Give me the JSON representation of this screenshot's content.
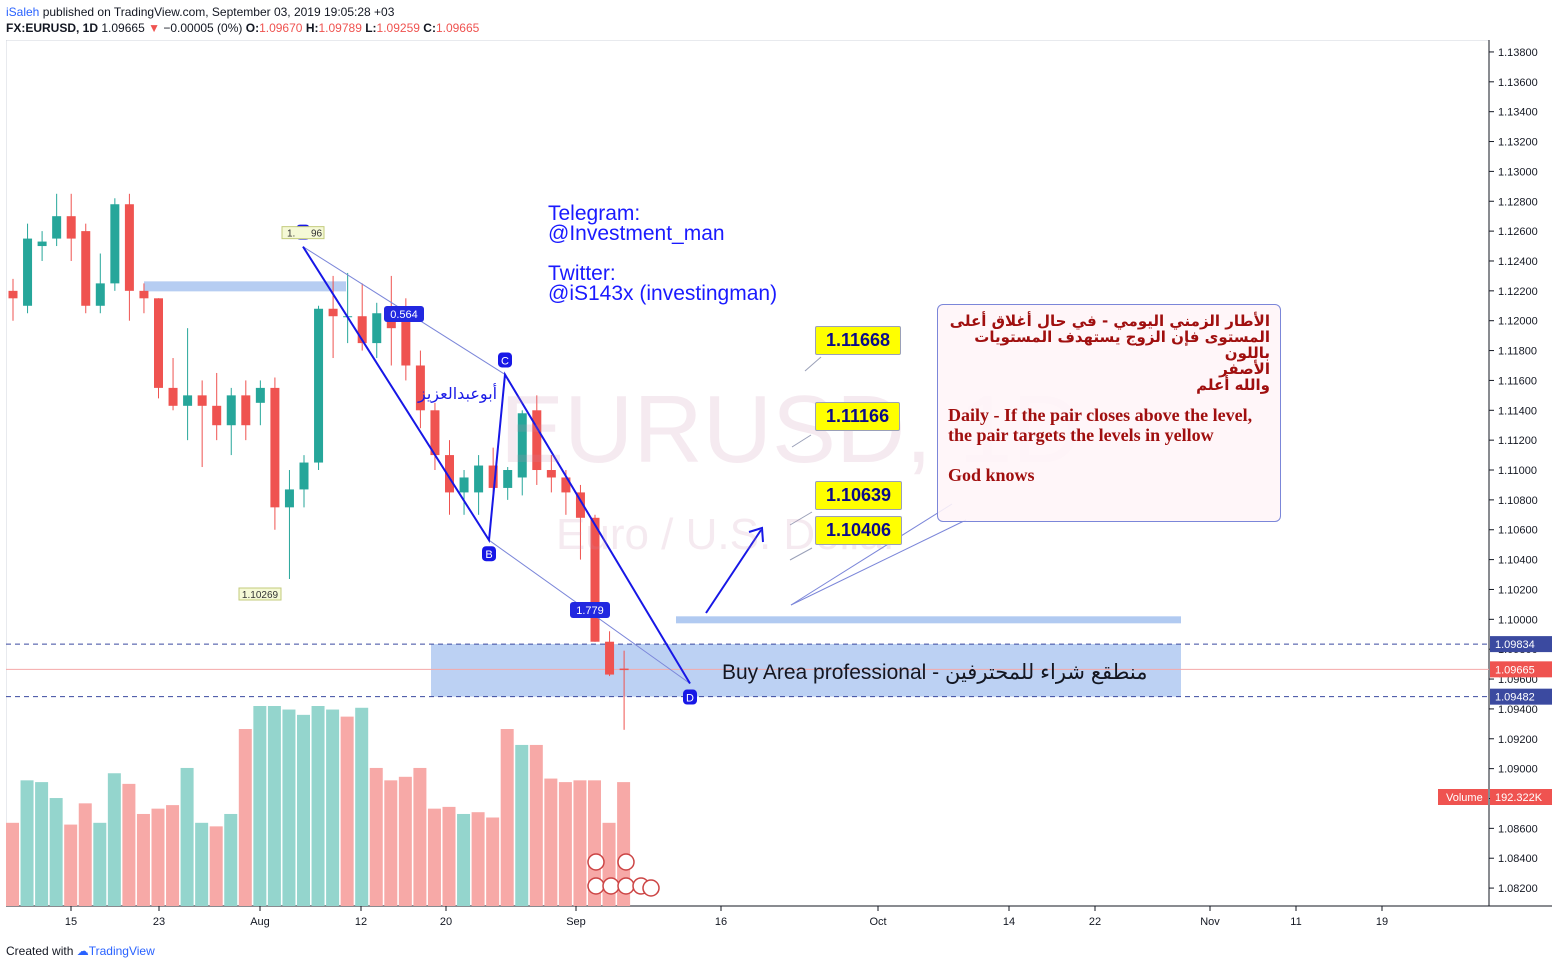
{
  "header": {
    "user": "iSaleh",
    "published_text": " published on TradingView.com, September 03, 2019 19:05:28 +03",
    "symbol": "FX:EURUSD, 1D",
    "last": "1.09665",
    "change": "−0.00005 (0%)",
    "o_label": "O:",
    "o_value": "1.09670",
    "h_label": "H:",
    "h_value": "1.09789",
    "l_label": "L:",
    "l_value": "1.09259",
    "c_label": "C:",
    "c_value": "1.09665"
  },
  "watermark": {
    "symbol": "EURUSD, 1D",
    "desc": "Euro / U.S. Dollar"
  },
  "social": {
    "line1": "Telegram:",
    "line2": "@Investment_man",
    "line3": "Twitter:",
    "line4": "@iS143x (investingman)"
  },
  "note": {
    "arabic_1": "الأطار الزمني اليومي - في حال أغلاق أعلى",
    "arabic_2": "المستوى فإن الزوج يستهدف المستويات باللون",
    "arabic_3": "الأصفر",
    "arabic_4": "والله أعلم",
    "english": "Daily - If the pair closes above the level, the pair targets the levels in yellow",
    "god_knows": "God knows"
  },
  "targets": [
    "1.11668",
    "1.11166",
    "1.10639",
    "1.10406"
  ],
  "buy_area_text": "Buy Area professional - منطقع شراء للمحترفين",
  "arabic_name": "أبوعبدالعزيز",
  "pattern": {
    "A": "A",
    "B": "B",
    "C": "C",
    "D": "D",
    "ratio_ab": "0.564",
    "ratio_bc": "1.779"
  },
  "labels": {
    "high": "1.12496",
    "high_short": "1.",
    "high_tail": "96",
    "low": "1.10269"
  },
  "price_tags": {
    "upper": "1.09834",
    "current": "1.09665",
    "lower": "1.09482",
    "volume_label": "Volume",
    "volume_value": "192.322K"
  },
  "footer": {
    "created_with": "Created with",
    "brand": "TradingView"
  },
  "colors": {
    "up": "#26a69a",
    "down": "#ef5350",
    "up_vol": "#94d5cd",
    "down_vol": "#f7a9a7",
    "zone": "#a9c4f0",
    "pattern": "#1717e6",
    "target_bg": "#ffff00"
  },
  "chart_data": {
    "type": "candlestick",
    "symbol": "FX:EURUSD",
    "interval": "1D",
    "ylim": [
      1.0808,
      1.1388
    ],
    "y_ticks": [
      "1.13800",
      "1.13600",
      "1.13400",
      "1.13200",
      "1.13000",
      "1.12800",
      "1.12600",
      "1.12400",
      "1.12200",
      "1.12000",
      "1.11800",
      "1.11600",
      "1.11400",
      "1.11200",
      "1.11000",
      "1.10800",
      "1.10600",
      "1.10400",
      "1.10200",
      "1.10000",
      "1.09800",
      "1.09600",
      "1.09400",
      "1.09200",
      "1.09000",
      "1.08800",
      "1.08600",
      "1.08400",
      "1.08200"
    ],
    "x_ticks": [
      "15",
      "23",
      "Aug",
      "12",
      "20",
      "Sep",
      "16",
      "Oct",
      "14",
      "22",
      "Nov",
      "11",
      "19"
    ],
    "candles": [
      {
        "o": 1.122,
        "h": 1.1228,
        "l": 1.12,
        "c": 1.1215
      },
      {
        "o": 1.121,
        "h": 1.1265,
        "l": 1.1205,
        "c": 1.1255
      },
      {
        "o": 1.125,
        "h": 1.126,
        "l": 1.124,
        "c": 1.1253
      },
      {
        "o": 1.1255,
        "h": 1.1285,
        "l": 1.125,
        "c": 1.127
      },
      {
        "o": 1.127,
        "h": 1.1285,
        "l": 1.124,
        "c": 1.1255
      },
      {
        "o": 1.126,
        "h": 1.1265,
        "l": 1.1205,
        "c": 1.121
      },
      {
        "o": 1.121,
        "h": 1.1245,
        "l": 1.1205,
        "c": 1.1225
      },
      {
        "o": 1.1225,
        "h": 1.1282,
        "l": 1.122,
        "c": 1.1278
      },
      {
        "o": 1.1278,
        "h": 1.1285,
        "l": 1.12,
        "c": 1.122
      },
      {
        "o": 1.122,
        "h": 1.1225,
        "l": 1.1205,
        "c": 1.1215
      },
      {
        "o": 1.1215,
        "h": 1.1215,
        "l": 1.1148,
        "c": 1.1155
      },
      {
        "o": 1.1155,
        "h": 1.1175,
        "l": 1.114,
        "c": 1.1143
      },
      {
        "o": 1.1143,
        "h": 1.1195,
        "l": 1.112,
        "c": 1.115
      },
      {
        "o": 1.115,
        "h": 1.116,
        "l": 1.1102,
        "c": 1.1143
      },
      {
        "o": 1.1143,
        "h": 1.1165,
        "l": 1.112,
        "c": 1.113
      },
      {
        "o": 1.113,
        "h": 1.1155,
        "l": 1.111,
        "c": 1.115
      },
      {
        "o": 1.115,
        "h": 1.116,
        "l": 1.112,
        "c": 1.113
      },
      {
        "o": 1.1145,
        "h": 1.116,
        "l": 1.113,
        "c": 1.1155
      },
      {
        "o": 1.1155,
        "h": 1.1162,
        "l": 1.106,
        "c": 1.1075
      },
      {
        "o": 1.1075,
        "h": 1.11,
        "l": 1.1027,
        "c": 1.1087
      },
      {
        "o": 1.1087,
        "h": 1.111,
        "l": 1.1075,
        "c": 1.1105
      },
      {
        "o": 1.1105,
        "h": 1.121,
        "l": 1.11,
        "c": 1.1208
      },
      {
        "o": 1.1208,
        "h": 1.123,
        "l": 1.1175,
        "c": 1.1203
      },
      {
        "o": 1.1203,
        "h": 1.1232,
        "l": 1.1185,
        "c": 1.1203
      },
      {
        "o": 1.1203,
        "h": 1.1225,
        "l": 1.118,
        "c": 1.1185
      },
      {
        "o": 1.1185,
        "h": 1.1212,
        "l": 1.1175,
        "c": 1.1205
      },
      {
        "o": 1.1205,
        "h": 1.123,
        "l": 1.117,
        "c": 1.1195
      },
      {
        "o": 1.12,
        "h": 1.1215,
        "l": 1.116,
        "c": 1.117
      },
      {
        "o": 1.117,
        "h": 1.118,
        "l": 1.1128,
        "c": 1.114
      },
      {
        "o": 1.114,
        "h": 1.1145,
        "l": 1.11,
        "c": 1.111
      },
      {
        "o": 1.111,
        "h": 1.112,
        "l": 1.107,
        "c": 1.1085
      },
      {
        "o": 1.1085,
        "h": 1.11,
        "l": 1.107,
        "c": 1.1095
      },
      {
        "o": 1.1085,
        "h": 1.111,
        "l": 1.107,
        "c": 1.1103
      },
      {
        "o": 1.1103,
        "h": 1.1115,
        "l": 1.108,
        "c": 1.1088
      },
      {
        "o": 1.1088,
        "h": 1.1102,
        "l": 1.108,
        "c": 1.11
      },
      {
        "o": 1.1095,
        "h": 1.114,
        "l": 1.1083,
        "c": 1.1138
      },
      {
        "o": 1.114,
        "h": 1.115,
        "l": 1.109,
        "c": 1.11
      },
      {
        "o": 1.11,
        "h": 1.111,
        "l": 1.1085,
        "c": 1.1095
      },
      {
        "o": 1.1095,
        "h": 1.11,
        "l": 1.107,
        "c": 1.1085
      },
      {
        "o": 1.1085,
        "h": 1.109,
        "l": 1.104,
        "c": 1.1068
      },
      {
        "o": 1.1068,
        "h": 1.107,
        "l": 1.0985,
        "c": 1.0985
      },
      {
        "o": 1.0985,
        "h": 1.0992,
        "l": 1.0962,
        "c": 1.0963
      },
      {
        "o": 1.0967,
        "h": 1.0979,
        "l": 1.0926,
        "c": 1.0966
      }
    ],
    "volume": [
      {
        "v": 0.47,
        "up": false
      },
      {
        "v": 0.71,
        "up": true
      },
      {
        "v": 0.7,
        "up": true
      },
      {
        "v": 0.61,
        "up": true
      },
      {
        "v": 0.46,
        "up": false
      },
      {
        "v": 0.58,
        "up": false
      },
      {
        "v": 0.47,
        "up": true
      },
      {
        "v": 0.75,
        "up": true
      },
      {
        "v": 0.69,
        "up": false
      },
      {
        "v": 0.52,
        "up": false
      },
      {
        "v": 0.55,
        "up": false
      },
      {
        "v": 0.57,
        "up": false
      },
      {
        "v": 0.78,
        "up": true
      },
      {
        "v": 0.47,
        "up": true
      },
      {
        "v": 0.45,
        "up": false
      },
      {
        "v": 0.52,
        "up": true
      },
      {
        "v": 1.0,
        "up": false
      },
      {
        "v": 1.13,
        "up": true
      },
      {
        "v": 1.13,
        "up": true
      },
      {
        "v": 1.11,
        "up": true
      },
      {
        "v": 1.08,
        "up": true
      },
      {
        "v": 1.13,
        "up": true
      },
      {
        "v": 1.11,
        "up": true
      },
      {
        "v": 1.07,
        "up": false
      },
      {
        "v": 1.12,
        "up": true
      },
      {
        "v": 0.78,
        "up": false
      },
      {
        "v": 0.71,
        "up": false
      },
      {
        "v": 0.73,
        "up": false
      },
      {
        "v": 0.78,
        "up": false
      },
      {
        "v": 0.55,
        "up": false
      },
      {
        "v": 0.56,
        "up": false
      },
      {
        "v": 0.52,
        "up": true
      },
      {
        "v": 0.53,
        "up": false
      },
      {
        "v": 0.5,
        "up": false
      },
      {
        "v": 1.0,
        "up": false
      },
      {
        "v": 0.91,
        "up": true
      },
      {
        "v": 0.91,
        "up": false
      },
      {
        "v": 0.72,
        "up": false
      },
      {
        "v": 0.7,
        "up": false
      },
      {
        "v": 0.71,
        "up": false
      },
      {
        "v": 0.71,
        "up": false
      },
      {
        "v": 0.47,
        "up": false
      },
      {
        "v": 0.7,
        "up": false
      }
    ],
    "horizontal_levels": [
      1.09834,
      1.09482
    ],
    "current_price": 1.09665,
    "buy_zone": [
      1.09482,
      1.09834
    ],
    "resistance_zone": 1.1,
    "top_zone": 1.1223,
    "xabcd": {
      "A": 1.12496,
      "B": 1.1053,
      "C": 1.1164,
      "D": 1.0957
    },
    "target_levels": [
      1.11668,
      1.11166,
      1.10639,
      1.10406
    ]
  }
}
